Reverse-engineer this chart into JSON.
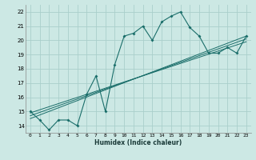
{
  "xlabel": "Humidex (Indice chaleur)",
  "bg_color": "#cce8e4",
  "grid_color": "#aacfcb",
  "line_color": "#1a6e6a",
  "xlim": [
    -0.5,
    23.5
  ],
  "ylim": [
    13.5,
    22.5
  ],
  "xticks": [
    0,
    1,
    2,
    3,
    4,
    5,
    6,
    7,
    8,
    9,
    10,
    11,
    12,
    13,
    14,
    15,
    16,
    17,
    18,
    19,
    20,
    21,
    22,
    23
  ],
  "yticks": [
    14,
    15,
    16,
    17,
    18,
    19,
    20,
    21,
    22
  ],
  "curve1_x": [
    0,
    1,
    2,
    3,
    4,
    5,
    6,
    7,
    8,
    9,
    10,
    11,
    12,
    13,
    14,
    15,
    16,
    17,
    18,
    19,
    20,
    21,
    22,
    23
  ],
  "curve1_y": [
    15.0,
    14.4,
    13.7,
    14.4,
    14.4,
    14.0,
    16.2,
    17.5,
    15.0,
    18.3,
    20.3,
    20.5,
    21.0,
    20.0,
    21.3,
    21.7,
    22.0,
    20.9,
    20.3,
    19.1,
    19.1,
    19.5,
    19.1,
    20.3
  ],
  "line2_x": [
    0,
    23
  ],
  "line2_y": [
    14.5,
    20.3
  ],
  "line3_x": [
    0,
    23
  ],
  "line3_y": [
    14.7,
    20.1
  ],
  "line4_x": [
    0,
    23
  ],
  "line4_y": [
    14.9,
    19.9
  ],
  "xlabel_fontsize": 5.5,
  "tick_fontsize": 4.5,
  "ytick_fontsize": 5.0
}
